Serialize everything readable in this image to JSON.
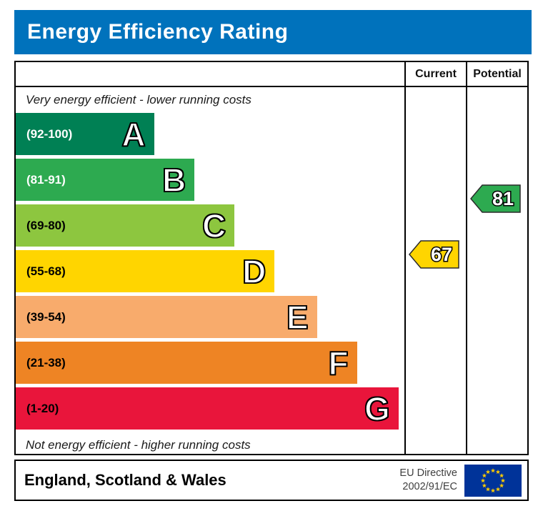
{
  "title": "Energy Efficiency Rating",
  "columns": {
    "current": "Current",
    "potential": "Potential"
  },
  "top_caption": "Very energy efficient - lower running costs",
  "bottom_caption": "Not energy efficient - higher running costs",
  "bands": [
    {
      "letter": "A",
      "range": "(92-100)",
      "min": 92,
      "max": 100,
      "color": "#008054",
      "label_color": "#ffffff",
      "width_pct": 35.6
    },
    {
      "letter": "B",
      "range": "(81-91)",
      "min": 81,
      "max": 91,
      "color": "#2daa50",
      "label_color": "#ffffff",
      "width_pct": 46.0
    },
    {
      "letter": "C",
      "range": "(69-80)",
      "min": 69,
      "max": 80,
      "color": "#8dc63f",
      "label_color": "#000000",
      "width_pct": 56.3
    },
    {
      "letter": "D",
      "range": "(55-68)",
      "min": 55,
      "max": 68,
      "color": "#ffd500",
      "label_color": "#000000",
      "width_pct": 66.6
    },
    {
      "letter": "E",
      "range": "(39-54)",
      "min": 39,
      "max": 54,
      "color": "#f8ab6c",
      "label_color": "#000000",
      "width_pct": 77.5
    },
    {
      "letter": "F",
      "range": "(21-38)",
      "min": 21,
      "max": 38,
      "color": "#ee8424",
      "label_color": "#000000",
      "width_pct": 87.8
    },
    {
      "letter": "G",
      "range": "(1-20)",
      "min": 1,
      "max": 20,
      "color": "#e9153b",
      "label_color": "#000000",
      "width_pct": 98.5
    }
  ],
  "current": {
    "value": "67",
    "color": "#ffd500",
    "band": "D"
  },
  "potential": {
    "value": "81",
    "color": "#2daa50",
    "band": "B"
  },
  "footer": {
    "region": "England, Scotland & Wales",
    "directive_line1": "EU Directive",
    "directive_line2": "2002/91/EC"
  },
  "colors": {
    "title_bar": "#0072bc",
    "border": "#000000",
    "eu_flag_blue": "#003399",
    "eu_star_yellow": "#ffcc00"
  },
  "chart_data": {
    "type": "bar",
    "title": "Energy Efficiency Rating",
    "categories": [
      "A",
      "B",
      "C",
      "D",
      "E",
      "F",
      "G"
    ],
    "band_ranges": [
      "92-100",
      "81-91",
      "69-80",
      "55-68",
      "39-54",
      "21-38",
      "1-20"
    ],
    "band_colors": [
      "#008054",
      "#2daa50",
      "#8dc63f",
      "#ffd500",
      "#f8ab6c",
      "#ee8424",
      "#e9153b"
    ],
    "bar_width_pct": [
      35.6,
      46.0,
      56.3,
      66.6,
      77.5,
      87.8,
      98.5
    ],
    "current": 67,
    "current_band": "D",
    "potential": 81,
    "potential_band": "B",
    "scale_min": 1,
    "scale_max": 100,
    "top_annotation": "Very energy efficient - lower running costs",
    "bottom_annotation": "Not energy efficient - higher running costs",
    "region": "England, Scotland & Wales",
    "directive": "EU Directive 2002/91/EC"
  }
}
